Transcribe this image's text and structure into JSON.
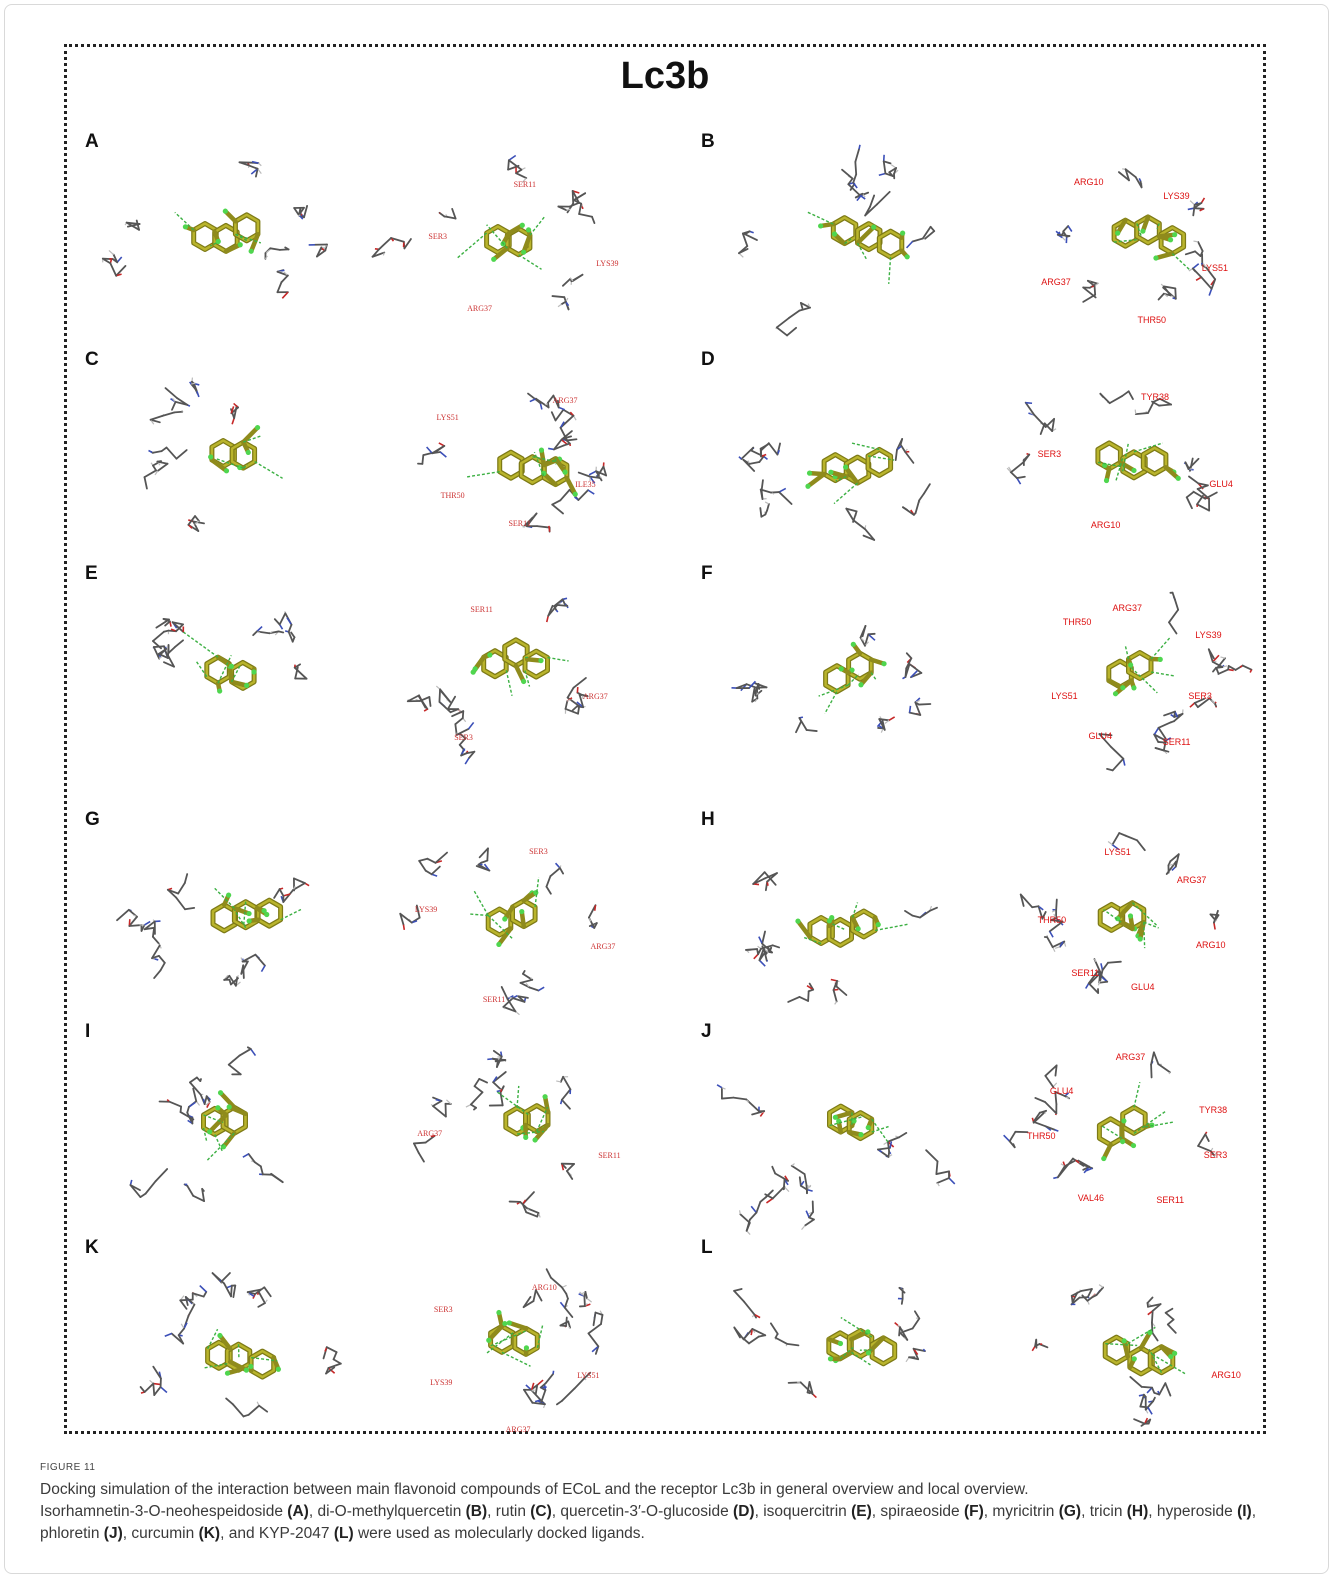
{
  "figure": {
    "title": "Lc3b",
    "panels": [
      {
        "letter": "A",
        "labels": [
          "LYS39",
          "ARG37",
          "SER3",
          "SER11"
        ]
      },
      {
        "letter": "B",
        "labels": [
          "LYS51",
          "THR50",
          "ARG37",
          "ARG10",
          "LYS39"
        ]
      },
      {
        "letter": "C",
        "labels": [
          "ILE35",
          "SER11",
          "THR50",
          "LYS51",
          "ARG37"
        ]
      },
      {
        "letter": "D",
        "labels": [
          "GLU4",
          "ARG10",
          "SER3",
          "TYR38"
        ]
      },
      {
        "letter": "E",
        "labels": [
          "ARG37",
          "SER3",
          "SER11"
        ]
      },
      {
        "letter": "F",
        "labels": [
          "SER3",
          "SER11",
          "GLU4",
          "LYS51",
          "THR50",
          "ARG37",
          "LYS39"
        ]
      },
      {
        "letter": "G",
        "labels": [
          "ARG37",
          "SER11",
          "LYS39",
          "SER3"
        ]
      },
      {
        "letter": "H",
        "labels": [
          "ARG10",
          "GLU4",
          "SER11",
          "THR50",
          "LYS51",
          "ARG37"
        ]
      },
      {
        "letter": "I",
        "labels": [
          "SER11",
          "ARG37"
        ]
      },
      {
        "letter": "J",
        "labels": [
          "SER3",
          "SER11",
          "VAL46",
          "THR50",
          "GLU4",
          "ARG37",
          "TYR38"
        ]
      },
      {
        "letter": "K",
        "labels": [
          "LYS51",
          "ARG37",
          "LYS39",
          "SER3",
          "ARG10"
        ]
      },
      {
        "letter": "L",
        "labels": [
          "ARG10"
        ]
      }
    ]
  },
  "caption": {
    "label": "FIGURE 11",
    "line1": "Docking simulation of the interaction between main flavonoid compounds of ECoL and the receptor Lc3b in general overview and local overview.",
    "ligands": [
      {
        "name": "Isorhamnetin-3-O-neohespeidoside",
        "tag": "(A)",
        "sep": ", "
      },
      {
        "name": "di-O-methylquercetin",
        "tag": "(B)",
        "sep": ", "
      },
      {
        "name": "rutin",
        "tag": "(C)",
        "sep": ", "
      },
      {
        "name": "quercetin-3′-O-glucoside",
        "tag": "(D)",
        "sep": ", "
      },
      {
        "name": "isoquercitrin",
        "tag": "(E)",
        "sep": ", "
      },
      {
        "name": "spiraeoside",
        "tag": "(F)",
        "sep": ", "
      },
      {
        "name": "myricitrin",
        "tag": "(G)",
        "sep": ", "
      },
      {
        "name": "tricin",
        "tag": "(H)",
        "sep": ", "
      },
      {
        "name": "hyperoside",
        "tag": "(I)",
        "sep": ", "
      },
      {
        "name": "phloretin",
        "tag": "(J)",
        "sep": ", "
      },
      {
        "name": "curcumin",
        "tag": "(K)",
        "sep": ", and "
      },
      {
        "name": "KYP-2047",
        "tag": "(L)",
        "sep": ""
      }
    ],
    "tail": " were used as molecularly docked ligands."
  }
}
